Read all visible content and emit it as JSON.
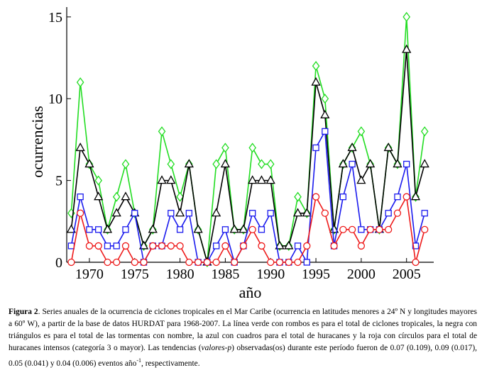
{
  "chart_data": {
    "type": "line",
    "xlabel": "año",
    "ylabel": "ocurrencias",
    "xlim": [
      1967.5,
      2008
    ],
    "ylim": [
      0,
      15.6
    ],
    "x_ticks": [
      1970,
      1975,
      1980,
      1985,
      1990,
      1995,
      2000,
      2005
    ],
    "y_ticks": [
      0,
      5,
      10,
      15
    ],
    "x": [
      1968,
      1969,
      1970,
      1971,
      1972,
      1973,
      1974,
      1975,
      1976,
      1977,
      1978,
      1979,
      1980,
      1981,
      1982,
      1983,
      1984,
      1985,
      1986,
      1987,
      1988,
      1989,
      1990,
      1991,
      1992,
      1993,
      1994,
      1995,
      1996,
      1997,
      1998,
      1999,
      2000,
      2001,
      2002,
      2003,
      2004,
      2005,
      2006,
      2007
    ],
    "series": [
      {
        "color": "#22dd22",
        "marker": "diamond",
        "values": [
          3,
          11,
          6,
          5,
          2,
          4,
          6,
          3,
          1,
          2,
          8,
          6,
          4,
          6,
          2,
          0,
          6,
          7,
          2,
          2,
          7,
          6,
          6,
          1,
          1,
          4,
          3,
          12,
          10,
          2,
          6,
          7,
          8,
          6,
          2,
          7,
          6,
          15,
          4,
          8
        ]
      },
      {
        "color": "#000000",
        "marker": "triangle",
        "values": [
          2,
          7,
          6,
          4,
          2,
          3,
          4,
          3,
          1,
          2,
          5,
          5,
          3,
          6,
          2,
          0,
          3,
          6,
          2,
          2,
          5,
          5,
          5,
          1,
          1,
          3,
          3,
          11,
          9,
          2,
          6,
          7,
          5,
          6,
          2,
          7,
          6,
          13,
          4,
          6
        ]
      },
      {
        "color": "#1a1aee",
        "marker": "square",
        "values": [
          1,
          4,
          2,
          2,
          1,
          1,
          2,
          3,
          0,
          1,
          1,
          3,
          2,
          3,
          0,
          0,
          1,
          2,
          0,
          1,
          3,
          2,
          3,
          0,
          0,
          1,
          0,
          7,
          8,
          1,
          4,
          6,
          2,
          2,
          2,
          3,
          4,
          6,
          1,
          3
        ]
      },
      {
        "color": "#ee1a1a",
        "marker": "circle",
        "values": [
          0,
          3,
          1,
          1,
          0,
          0,
          1,
          0,
          0,
          1,
          1,
          1,
          1,
          0,
          0,
          0,
          0,
          1,
          0,
          1,
          2,
          1,
          0,
          0,
          0,
          0,
          1,
          4,
          3,
          1,
          2,
          2,
          1,
          2,
          2,
          2,
          3,
          4,
          0,
          2
        ]
      }
    ]
  },
  "caption": {
    "label": "Figura 2",
    "text_1": ". Series anuales de la ocurrencia de ciclones tropicales en el Mar Caribe (ocurrencia en latitudes menores a 24º N y longitudes mayores a 60º W), a partir de la base de datos HURDAT para 1968-2007. La línea verde con rombos es para el total de ciclones tropicales, la negra con triángulos es para el total de las tormentas con nombre, la azul con cuadros para el total de huracanes y la roja con círculos para el total de huracanes intensos (categoría 3 o mayor). Las tendencias (",
    "italic": "valores-p",
    "text_2": ") observadas(os) durante este período fueron de 0.07 (0.109), 0.09 (0.017), 0.05 (0.041) y 0.04 (0.006) eventos año",
    "superscript": "-1",
    "text_3": ", respectivamente."
  }
}
